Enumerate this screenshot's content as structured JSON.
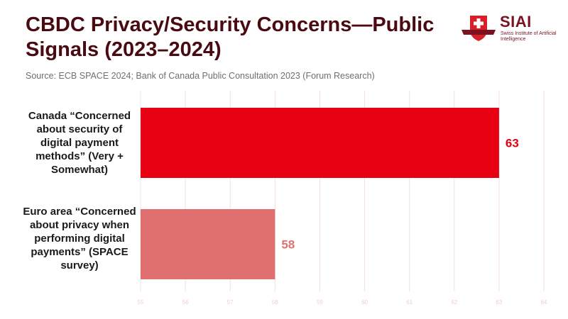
{
  "title": "CBDC Privacy/Security Concerns—Public Signals (2023–2024)",
  "source": "Source: ECB SPACE 2024; Bank of Canada Public Consultation 2023 (Forum Research)",
  "logo": {
    "brand": "SIAI",
    "subtitle": "Swiss Institute of Artificial Intelligence"
  },
  "colors": {
    "title": "#4a0a12",
    "bar_canada": "#e60012",
    "bar_euro": "#e07070",
    "grid": "#f3dede",
    "tick": "#f4cccc"
  },
  "chart_data": {
    "type": "bar",
    "orientation": "horizontal",
    "categories": [
      "Canada “Concerned about security of digital payment methods” (Very + Somewhat)",
      "Euro area “Concerned about privacy when performing digital payments” (SPACE survey)"
    ],
    "values": [
      63,
      58
    ],
    "value_labels": [
      "63",
      "58"
    ],
    "xlim": [
      55,
      64
    ],
    "xticks": [
      "55",
      "56",
      "57",
      "58",
      "59",
      "60",
      "61",
      "62",
      "63",
      "64"
    ],
    "grid": true,
    "legend": "none"
  }
}
